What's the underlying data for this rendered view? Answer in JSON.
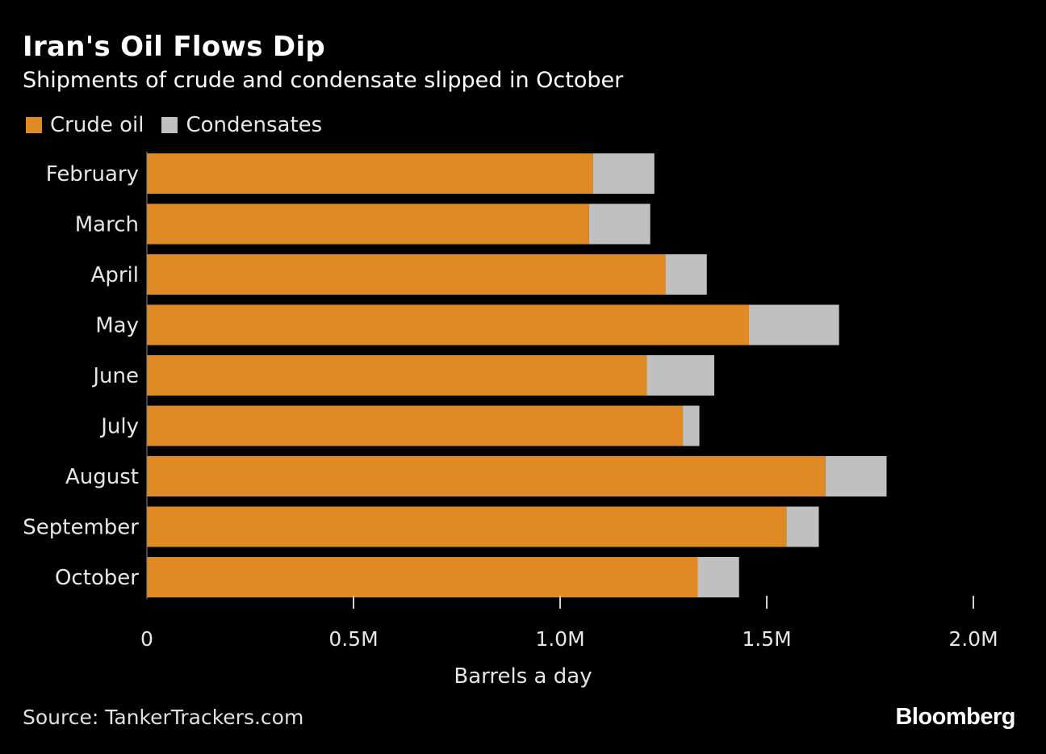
{
  "header": {
    "title": "Iran's Oil Flows Dip",
    "subtitle": "Shipments of crude and condensate slipped in October"
  },
  "legend": {
    "items": [
      {
        "label": "Crude oil",
        "color": "#df8a24"
      },
      {
        "label": "Condensates",
        "color": "#c0c0c0"
      }
    ]
  },
  "chart_data": {
    "type": "bar",
    "orientation": "horizontal",
    "stacked": true,
    "title": "Iran's Oil Flows Dip",
    "subtitle": "Shipments of crude and condensate slipped in October",
    "categories": [
      "February",
      "March",
      "April",
      "May",
      "June",
      "July",
      "August",
      "September",
      "October"
    ],
    "series": [
      {
        "name": "Crude oil",
        "color": "#df8a24",
        "values": [
          1.08,
          1.07,
          1.255,
          1.457,
          1.21,
          1.297,
          1.642,
          1.548,
          1.333
        ]
      },
      {
        "name": "Condensates",
        "color": "#c0c0c0",
        "values": [
          0.148,
          0.148,
          0.1,
          0.218,
          0.163,
          0.04,
          0.148,
          0.078,
          0.1
        ]
      }
    ],
    "xlabel": "Barrels a day",
    "ylabel": "",
    "xlim": [
      0,
      2.0
    ],
    "xticks": [
      0,
      0.5,
      1.0,
      1.5,
      2.0
    ],
    "xtick_labels": [
      "0",
      "0.5M",
      "1.0M",
      "1.5M",
      "2.0M"
    ],
    "grid": false,
    "legend_position": "top-left"
  },
  "footer": {
    "source": "Source: TankerTrackers.com",
    "brand": "Bloomberg"
  }
}
